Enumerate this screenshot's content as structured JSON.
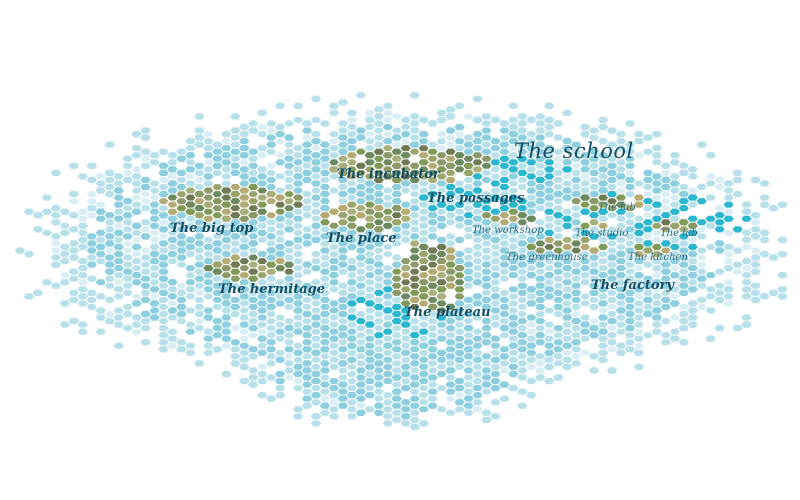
{
  "title": "The school",
  "colors": {
    "water_pale": "#d9eef4",
    "water_light": "#b8e0ea",
    "water_mid": "#8ecfdf",
    "water_deep": "#2ab7cf",
    "hex_stroke": "#ffffff",
    "land": [
      "#7f9b57",
      "#9aa56b",
      "#b4aa73",
      "#6b8a60",
      "#8c9a6a",
      "#a7b07a",
      "#6f7a55"
    ],
    "label": "#114e66"
  },
  "regions": [
    {
      "id": "the-incubator",
      "label": "The incubator",
      "size": "major"
    },
    {
      "id": "the-passages",
      "label": "The passages",
      "size": "major"
    },
    {
      "id": "the-big-top",
      "label": "The big top",
      "size": "major"
    },
    {
      "id": "the-place",
      "label": "The place",
      "size": "major"
    },
    {
      "id": "the-hermitage",
      "label": "The hermitage",
      "size": "major"
    },
    {
      "id": "the-plateau",
      "label": "The plateau",
      "size": "major"
    },
    {
      "id": "the-factory",
      "label": "The factory",
      "size": "major"
    },
    {
      "id": "the-lab-top",
      "label": "The lab",
      "size": "minor"
    },
    {
      "id": "the-workshop",
      "label": "The workshop",
      "size": "minor"
    },
    {
      "id": "the-studio",
      "label": "The studio",
      "size": "minor"
    },
    {
      "id": "the-lab",
      "label": "The lab",
      "size": "minor"
    },
    {
      "id": "the-greenhouse",
      "label": "The greenhouse",
      "size": "minor"
    },
    {
      "id": "the-kitchen",
      "label": "The kitchen",
      "size": "minor"
    }
  ]
}
